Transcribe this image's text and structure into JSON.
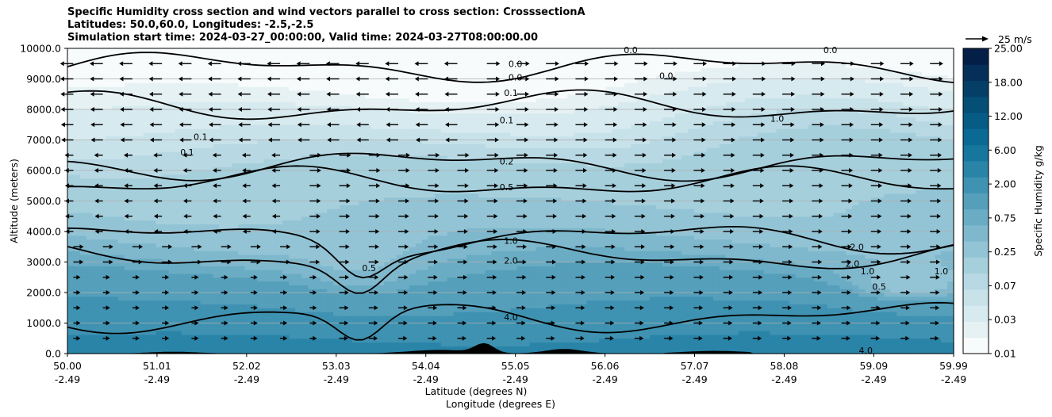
{
  "chart_data": {
    "type": "heatmap",
    "title_lines": [
      "Specific Humidity cross section and wind vectors parallel to cross section: CrosssectionA",
      "Latitudes: 50.0,60.0, Longitudes: -2.5,-2.5",
      "Simulation start time: 2024-03-27_00:00:00, Valid time: 2024-03-27T08:00:00.00"
    ],
    "ylabel": "Altitude (meters)",
    "xlabel_lat": "Latitude (degrees N)",
    "xlabel_lon": "Longitude (degrees E)",
    "x_ticks": [
      {
        "lat": "50.00",
        "lon": "-2.49"
      },
      {
        "lat": "51.01",
        "lon": "-2.49"
      },
      {
        "lat": "52.02",
        "lon": "-2.49"
      },
      {
        "lat": "53.03",
        "lon": "-2.49"
      },
      {
        "lat": "54.04",
        "lon": "-2.49"
      },
      {
        "lat": "55.05",
        "lon": "-2.49"
      },
      {
        "lat": "56.06",
        "lon": "-2.49"
      },
      {
        "lat": "57.07",
        "lon": "-2.49"
      },
      {
        "lat": "58.08",
        "lon": "-2.49"
      },
      {
        "lat": "59.09",
        "lon": "-2.49"
      },
      {
        "lat": "59.99",
        "lon": "-2.49"
      }
    ],
    "x_range": [
      50.0,
      59.99
    ],
    "y_ticks": [
      "0.0",
      "1000.0",
      "2000.0",
      "3000.0",
      "4000.0",
      "5000.0",
      "6000.0",
      "7000.0",
      "8000.0",
      "9000.0",
      "10000.0"
    ],
    "ylim": [
      0,
      10000
    ],
    "grid": "horizontal",
    "colorbar": {
      "label": "Specific Humidity g/kg",
      "ticks": [
        "0.01",
        "0.03",
        "0.07",
        "0.25",
        "0.75",
        "2.00",
        "6.00",
        "12.00",
        "18.00",
        "25.00"
      ],
      "levels": [
        0.01,
        0.02,
        0.03,
        0.05,
        0.07,
        0.1,
        0.25,
        0.5,
        0.75,
        1.0,
        2.0,
        4.0,
        6.0,
        8.0,
        12.0,
        15.0,
        18.0,
        22.0,
        25.0
      ],
      "colors": [
        "#f7fbfc",
        "#e6f1f4",
        "#d7eaef",
        "#c8e2ea",
        "#b8d9e3",
        "#a6cfdc",
        "#93c4d5",
        "#7fb8cd",
        "#6aacc4",
        "#559fbb",
        "#3f92b1",
        "#2984a8",
        "#16769d",
        "#0a6a93",
        "#065c85",
        "#054e76",
        "#053f67",
        "#052f58",
        "#041f47"
      ],
      "colormap": "PuBu"
    },
    "quiver_key": {
      "label": "25 m/s",
      "speed": 25
    },
    "contours": [
      {
        "label": "0.0",
        "z_m": 9400
      },
      {
        "label": "0.1",
        "z_m": 8100
      },
      {
        "label": "0.2",
        "z_m": 6200
      },
      {
        "label": "0.5",
        "z_m": 5600
      },
      {
        "label": "1.0",
        "z_m": 3800
      },
      {
        "label": "2.0",
        "z_m": 3200
      },
      {
        "label": "4.0",
        "z_m": 1200
      }
    ],
    "contour_labels": [
      {
        "text": "0.0",
        "lat": 55.05,
        "z": 9500
      },
      {
        "text": "0.0",
        "lat": 55.05,
        "z": 9050
      },
      {
        "text": "0.1",
        "lat": 55.0,
        "z": 8550
      },
      {
        "text": "0.1",
        "lat": 54.95,
        "z": 7650
      },
      {
        "text": "0.2",
        "lat": 54.95,
        "z": 6300
      },
      {
        "text": "0.5",
        "lat": 54.95,
        "z": 5450
      },
      {
        "text": "1.0",
        "lat": 55.0,
        "z": 3700
      },
      {
        "text": "2.0",
        "lat": 55.0,
        "z": 3050
      },
      {
        "text": "4.0",
        "lat": 55.0,
        "z": 1200
      },
      {
        "text": "0.1",
        "lat": 51.35,
        "z": 6600
      },
      {
        "text": "0.1",
        "lat": 51.5,
        "z": 7100
      },
      {
        "text": "0.5",
        "lat": 53.4,
        "z": 2800
      },
      {
        "text": "0.0",
        "lat": 56.35,
        "z": 9950
      },
      {
        "text": "0.0",
        "lat": 58.6,
        "z": 9950
      },
      {
        "text": "0.0",
        "lat": 56.75,
        "z": 9100
      },
      {
        "text": "1.0",
        "lat": 58.0,
        "z": 7700
      },
      {
        "text": "2.0",
        "lat": 58.85,
        "z": 2950
      },
      {
        "text": "2.0",
        "lat": 58.9,
        "z": 3500
      },
      {
        "text": "1.0",
        "lat": 59.02,
        "z": 2700
      },
      {
        "text": "0.5",
        "lat": 59.15,
        "z": 2200
      },
      {
        "text": "1.0",
        "lat": 59.85,
        "z": 2700
      },
      {
        "text": "4.0",
        "lat": 59.0,
        "z": 100
      }
    ]
  }
}
